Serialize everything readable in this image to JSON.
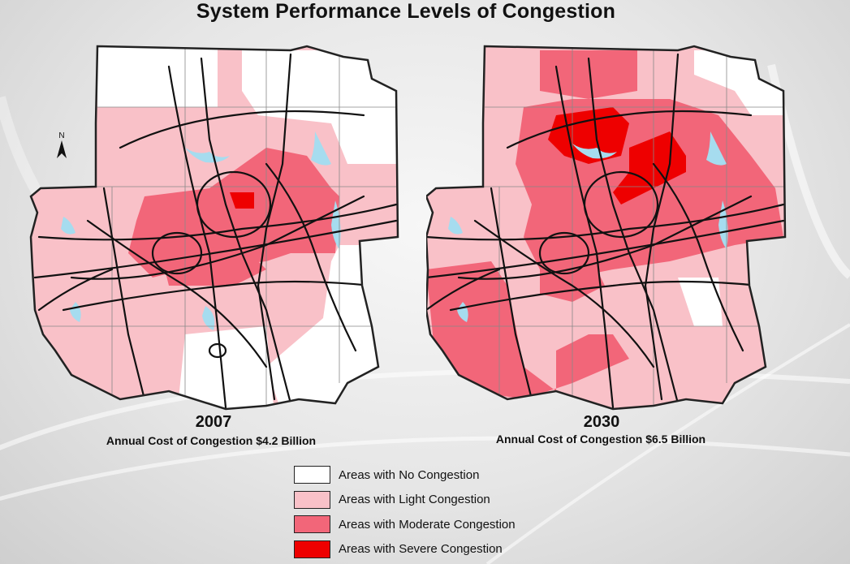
{
  "title": "System Performance Levels of Congestion",
  "maps": [
    {
      "year": "2007",
      "cost": "Annual Cost of Congestion $4.2 Billion"
    },
    {
      "year": "2030",
      "cost": "Annual Cost of Congestion $6.5 Billion"
    }
  ],
  "north_label": "N",
  "legend": [
    {
      "label": "Areas with No Congestion",
      "color": "#ffffff"
    },
    {
      "label": "Areas with Light Congestion",
      "color": "#f9c1c8"
    },
    {
      "label": "Areas with Moderate Congestion",
      "color": "#f26679"
    },
    {
      "label": "Areas with Severe Congestion",
      "color": "#ee0000"
    }
  ],
  "colors": {
    "road": "#111111",
    "water": "#a6dcef",
    "boundary": "#222222"
  }
}
